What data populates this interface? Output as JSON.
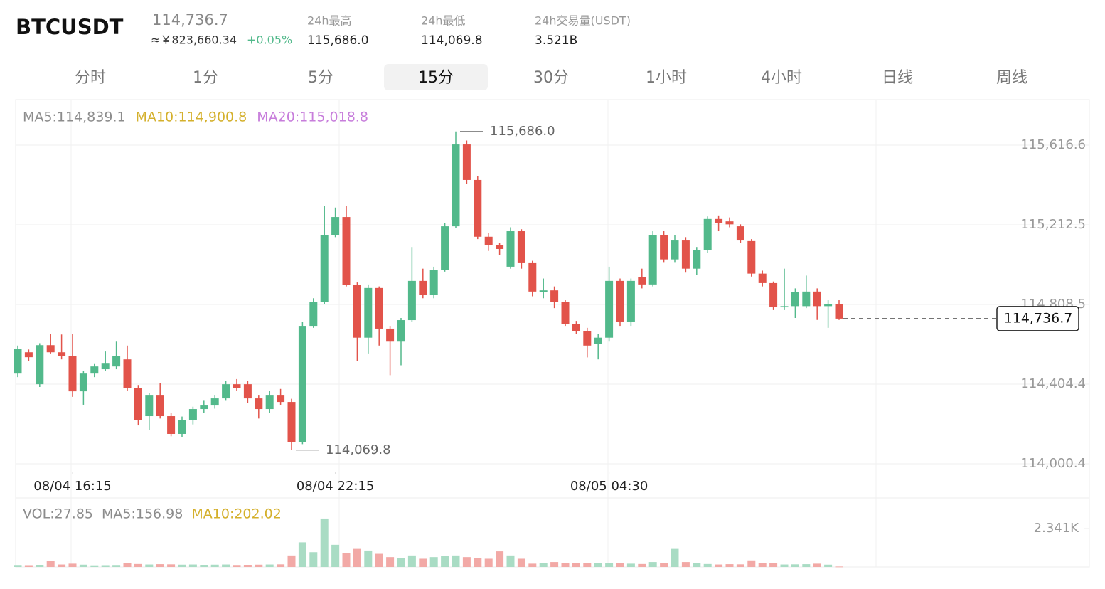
{
  "header": {
    "symbol": "BTCUSDT",
    "price": "114,736.7",
    "cny": "≈￥823,660.34",
    "change": "+0.05%",
    "stats": [
      {
        "label": "24h最高",
        "value": "115,686.0"
      },
      {
        "label": "24h最低",
        "value": "114,069.8"
      },
      {
        "label": "24h交易量(USDT)",
        "value": "3.521B"
      }
    ]
  },
  "tabs": {
    "items": [
      "分时",
      "1分",
      "5分",
      "15分",
      "30分",
      "1小时",
      "4小时",
      "日线",
      "周线"
    ],
    "active": 3
  },
  "chart_data": {
    "type": "candlestick",
    "ma_labels": [
      {
        "text": "MA5:114,839.1",
        "color": "#8c8c8c"
      },
      {
        "text": "MA10:114,900.8",
        "color": "#d4b02c"
      },
      {
        "text": "MA20:115,018.8",
        "color": "#c77ddb"
      }
    ],
    "up_color": "#52b98b",
    "down_color": "#e2534a",
    "open": [
      114458,
      114566,
      114404,
      114602,
      114566,
      114548,
      114368,
      114458,
      114480,
      114494,
      114530,
      114386,
      114242,
      114350,
      114242,
      114152,
      114224,
      114278,
      114296,
      114332,
      114404,
      114404,
      114332,
      114278,
      114350,
      114314,
      114109,
      114700,
      114820,
      115162,
      115252,
      114909,
      114640,
      114892,
      114686,
      114620,
      114729,
      114928,
      114856,
      114982,
      115205,
      115620,
      115440,
      115152,
      115108,
      115000,
      115180,
      115018,
      114870,
      114880,
      114820,
      114710,
      114675,
      114610,
      114640,
      114928,
      114722,
      114946,
      114910,
      115162,
      115037,
      115133,
      114990,
      115083,
      115242,
      115230,
      115205,
      115130,
      114965,
      114917,
      114794,
      114800,
      114800,
      114874,
      114800,
      114812
    ],
    "high": [
      114600,
      114580,
      114612,
      114660,
      114656,
      114660,
      114470,
      114510,
      114570,
      114620,
      114600,
      114400,
      114360,
      114410,
      114260,
      114240,
      114290,
      114320,
      114350,
      114420,
      114430,
      114420,
      114350,
      114370,
      114380,
      114330,
      114720,
      114840,
      115310,
      115300,
      115310,
      114920,
      114910,
      114900,
      114700,
      114740,
      115100,
      114990,
      115000,
      115220,
      115686,
      115640,
      115460,
      115170,
      115120,
      115200,
      115190,
      115030,
      114940,
      114900,
      114830,
      114725,
      114690,
      114660,
      115000,
      114940,
      114940,
      114990,
      115180,
      115180,
      115160,
      115150,
      115100,
      115255,
      115260,
      115250,
      115215,
      115140,
      114980,
      114925,
      114990,
      114890,
      114955,
      114890,
      114830,
      114830
    ],
    "low": [
      114440,
      114520,
      114390,
      114560,
      114530,
      114340,
      114300,
      114440,
      114470,
      114480,
      114370,
      114195,
      114170,
      114230,
      114140,
      114135,
      114200,
      114260,
      114280,
      114320,
      114370,
      114310,
      114230,
      114260,
      114300,
      114069.8,
      114100,
      114690,
      114810,
      115150,
      114900,
      114520,
      114560,
      114600,
      114450,
      114500,
      114720,
      114840,
      114840,
      114975,
      115195,
      115420,
      115140,
      115080,
      115060,
      114990,
      114990,
      114850,
      114840,
      114790,
      114700,
      114660,
      114540,
      114530,
      114620,
      114700,
      114700,
      114890,
      114900,
      115020,
      115020,
      114970,
      114960,
      115070,
      115180,
      115200,
      115120,
      114950,
      114900,
      114780,
      114780,
      114740,
      114790,
      114730,
      114690,
      114730
    ],
    "close": [
      114584,
      114541,
      114602,
      114566,
      114548,
      114368,
      114458,
      114494,
      114512,
      114548,
      114386,
      114224,
      114350,
      114242,
      114152,
      114224,
      114278,
      114296,
      114332,
      114404,
      114386,
      114332,
      114278,
      114350,
      114314,
      114109,
      114700,
      114820,
      115162,
      115252,
      114909,
      114640,
      114892,
      114686,
      114620,
      114729,
      114928,
      114856,
      114982,
      115205,
      115620,
      115440,
      115152,
      115108,
      115090,
      115180,
      115018,
      114874,
      114880,
      114820,
      114710,
      114675,
      114600,
      114640,
      114928,
      114722,
      114928,
      114910,
      115162,
      115037,
      115133,
      114990,
      115083,
      115242,
      115223,
      115215,
      115133,
      114965,
      114917,
      114794,
      114800,
      114870,
      114874,
      114800,
      114812,
      114736.7
    ],
    "ylim": [
      113957.1,
      115847.5
    ],
    "yticks": [
      {
        "value": 115616.6,
        "label": "115,616.6"
      },
      {
        "value": 115212.5,
        "label": "115,212.5"
      },
      {
        "value": 114808.5,
        "label": "114,808.5"
      },
      {
        "value": 114404.4,
        "label": "114,404.4"
      },
      {
        "value": 114000.4,
        "label": "114,000.4"
      }
    ],
    "xticks": [
      {
        "value": 5,
        "label": "08/04 16:15"
      },
      {
        "value": 29,
        "label": "08/04 22:15"
      },
      {
        "value": 54,
        "label": "08/05 04:30"
      }
    ],
    "high_annotation": {
      "index": 40,
      "value": 115686.0,
      "label": "115,686.0"
    },
    "low_annotation": {
      "index": 25,
      "value": 114069.8,
      "label": "114,069.8"
    },
    "last_price": {
      "value": 114736.7,
      "label": "114,736.7"
    },
    "volume_labels": [
      {
        "text": "VOL:27.85",
        "color": "#8c8c8c"
      },
      {
        "text": "MA5:156.98",
        "color": "#8c8c8c"
      },
      {
        "text": "MA10:202.02",
        "color": "#d4b02c"
      }
    ],
    "volume": [
      120,
      110,
      130,
      380,
      150,
      200,
      140,
      100,
      110,
      120,
      260,
      180,
      150,
      170,
      160,
      140,
      150,
      130,
      140,
      150,
      120,
      130,
      140,
      150,
      160,
      700,
      1500,
      900,
      2950,
      1350,
      850,
      1100,
      1000,
      800,
      600,
      550,
      700,
      500,
      600,
      650,
      700,
      600,
      550,
      500,
      950,
      700,
      500,
      200,
      220,
      300,
      250,
      220,
      230,
      220,
      260,
      230,
      200,
      180,
      300,
      230,
      1100,
      300,
      230,
      180,
      150,
      170,
      160,
      400,
      250,
      220,
      150,
      160,
      170,
      200,
      140,
      27.85
    ],
    "volume_up_color": "#a9dcc4",
    "volume_down_color": "#f2a9a6",
    "volume_ylim": [
      0,
      3988
    ],
    "volume_yticks": [
      {
        "value": 2341,
        "label": "2.341K"
      }
    ]
  }
}
